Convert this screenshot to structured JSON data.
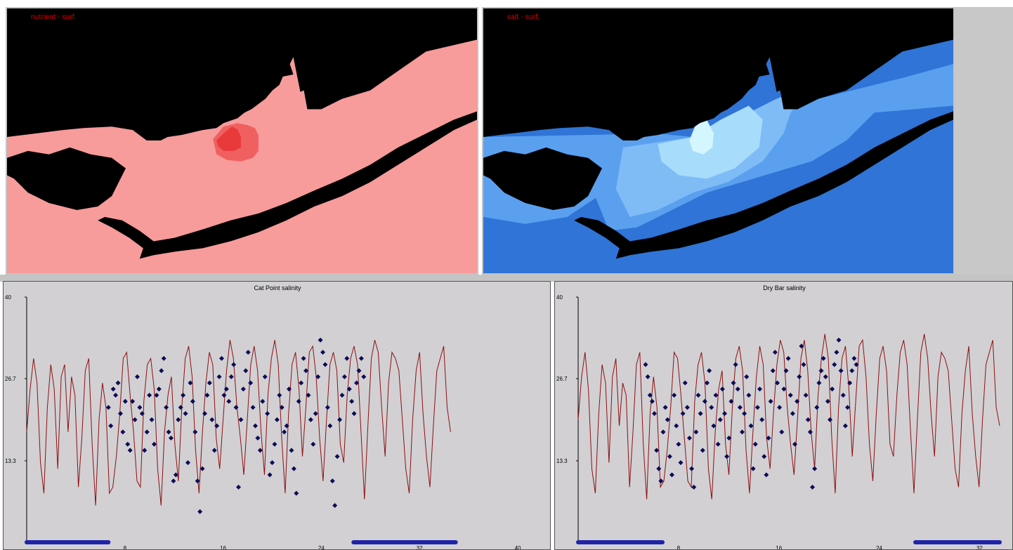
{
  "maps": {
    "nutrient": {
      "label": "nutrient - surf."
    },
    "salt": {
      "label": "salt - surf."
    }
  },
  "colors": {
    "land": "#000000",
    "nutrient_water": "#f79b9b",
    "nutrient_plume": "#f06060",
    "nutrient_core": "#e83a3a",
    "salt_deep": "#2f74d6",
    "salt_mid": "#5aa0ef",
    "salt_light": "#7fbcf6",
    "salt_lighter": "#a8dcfb",
    "salt_lightest": "#d4f6ff",
    "model_line": "#8b1010",
    "observation_marker": "#0b0b55",
    "panel_background": "#d2d0d3"
  },
  "chart_data": [
    {
      "type": "scatter",
      "title": "Cat Point salinity",
      "ylim": [
        0,
        40
      ],
      "y_ticks": [
        "40",
        "26.7",
        "13.3"
      ],
      "x_ticks": [
        "8",
        "16",
        "24",
        "32",
        "40"
      ],
      "series": [
        {
          "style": "line",
          "values": [
            18,
            25,
            30,
            26,
            13,
            8,
            22,
            29,
            25,
            12,
            27,
            29,
            18,
            27,
            24,
            9,
            17,
            28,
            30,
            16,
            6,
            20,
            26,
            22,
            8,
            9,
            14,
            21,
            30,
            31,
            24,
            18,
            10,
            9,
            23,
            29,
            30,
            25,
            12,
            6,
            18,
            24,
            27,
            16,
            10,
            22,
            30,
            32,
            27,
            15,
            8,
            18,
            26,
            31,
            29,
            17,
            12,
            20,
            28,
            33,
            30,
            22,
            17,
            11,
            20,
            29,
            32,
            28,
            18,
            11,
            24,
            30,
            33,
            29,
            17,
            8,
            21,
            29,
            31,
            25,
            14,
            22,
            31,
            32,
            27,
            17,
            10,
            20,
            29,
            31,
            28,
            16,
            13,
            24,
            30,
            32,
            29,
            18,
            7,
            19,
            30,
            33,
            31,
            22,
            14,
            26,
            31,
            30,
            28,
            20,
            12,
            8,
            20,
            28,
            31,
            21,
            14,
            9,
            19,
            28,
            30,
            32,
            22,
            18
          ]
        },
        {
          "style": "points",
          "values": [
            22,
            19,
            25,
            24,
            26,
            21,
            18,
            23,
            16,
            15,
            23,
            20,
            27,
            22,
            21,
            15,
            18,
            24,
            20,
            16,
            24,
            25,
            28,
            30,
            22,
            18,
            17,
            10,
            11,
            20,
            22,
            24,
            21,
            13,
            26,
            23,
            18,
            10,
            5,
            12,
            21,
            24,
            26,
            20,
            15,
            19,
            27,
            30,
            24,
            25,
            23,
            27,
            29,
            22,
            9,
            20,
            25,
            28,
            31,
            26,
            22,
            19,
            17,
            15,
            23,
            27,
            21,
            11,
            13,
            16,
            20,
            24,
            22,
            18,
            19,
            25,
            15,
            12,
            8,
            23,
            26,
            30,
            28,
            24,
            20,
            16,
            21,
            27,
            33,
            31,
            29,
            22,
            19,
            10,
            6,
            14,
            20,
            24,
            27,
            30,
            25,
            23,
            21,
            26,
            28,
            30,
            27
          ]
        }
      ]
    },
    {
      "type": "scatter",
      "title": "Dry Bar salinity",
      "ylim": [
        0,
        40
      ],
      "y_ticks": [
        "40",
        "26.7",
        "13.3"
      ],
      "x_ticks": [
        "8",
        "16",
        "24",
        "32"
      ],
      "series": [
        {
          "style": "line",
          "values": [
            20,
            27,
            31,
            25,
            12,
            8,
            21,
            29,
            26,
            13,
            27,
            30,
            19,
            26,
            24,
            9,
            18,
            29,
            31,
            16,
            7,
            21,
            27,
            22,
            9,
            10,
            15,
            22,
            31,
            30,
            24,
            17,
            10,
            9,
            23,
            29,
            31,
            26,
            12,
            7,
            18,
            25,
            28,
            16,
            11,
            22,
            30,
            32,
            28,
            15,
            8,
            18,
            27,
            32,
            29,
            17,
            12,
            21,
            29,
            33,
            31,
            22,
            16,
            11,
            20,
            30,
            33,
            28,
            18,
            12,
            24,
            30,
            34,
            30,
            17,
            8,
            22,
            30,
            32,
            25,
            14,
            23,
            32,
            33,
            27,
            16,
            10,
            21,
            30,
            32,
            28,
            16,
            14,
            24,
            31,
            33,
            29,
            18,
            8,
            20,
            31,
            34,
            30,
            21,
            14,
            27,
            31,
            30,
            28,
            20,
            12,
            9,
            21,
            28,
            32,
            21,
            14,
            9,
            20,
            29,
            31,
            33,
            22,
            19
          ]
        },
        {
          "style": "points",
          "values": [
            29,
            27,
            24,
            23,
            21,
            15,
            12,
            10,
            18,
            22,
            20,
            14,
            11,
            24,
            19,
            16,
            13,
            21,
            26,
            22,
            17,
            12,
            9,
            18,
            24,
            21,
            15,
            23,
            26,
            28,
            22,
            19,
            24,
            16,
            20,
            25,
            21,
            14,
            17,
            23,
            26,
            29,
            25,
            22,
            18,
            21,
            27,
            24,
            19,
            12,
            16,
            22,
            25,
            20,
            14,
            11,
            17,
            23,
            28,
            31,
            26,
            22,
            18,
            25,
            28,
            30,
            24,
            21,
            16,
            23,
            27,
            32,
            29,
            24,
            20,
            18,
            9,
            12,
            22,
            26,
            28,
            30,
            27,
            23,
            20,
            25,
            29,
            31,
            33,
            28,
            24,
            19,
            22,
            26,
            28,
            30,
            29
          ]
        }
      ]
    }
  ]
}
